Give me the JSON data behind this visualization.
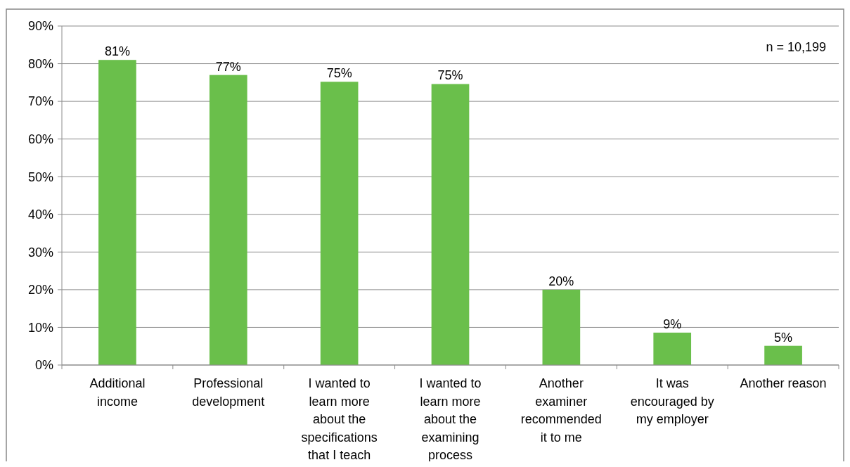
{
  "chart_data": {
    "type": "bar",
    "categories": [
      "Additional income",
      "Professional development",
      "I wanted to learn more about the specifications that I teach",
      "I wanted to learn more about the examining process",
      "Another examiner recommended it to me",
      "It was encouraged by my employer",
      "Another reason"
    ],
    "values": [
      81,
      77,
      75.2,
      74.6,
      20,
      8.6,
      5.1
    ],
    "value_labels": [
      "81%",
      "77%",
      "75%",
      "75%",
      "20%",
      "9%",
      "5%"
    ],
    "color": "#6abf4b",
    "ylim": [
      0,
      90
    ],
    "yticks": [
      {
        "value": 0,
        "label": "0%"
      },
      {
        "value": 10,
        "label": "10%"
      },
      {
        "value": 20,
        "label": "20%"
      },
      {
        "value": 30,
        "label": "30%"
      },
      {
        "value": 40,
        "label": "40%"
      },
      {
        "value": 50,
        "label": "50%"
      },
      {
        "value": 60,
        "label": "60%"
      },
      {
        "value": 70,
        "label": "70%"
      },
      {
        "value": 80,
        "label": "80%"
      },
      {
        "value": 90,
        "label": "90%"
      }
    ],
    "grid": "y",
    "annotations": [
      "n = 10,199"
    ]
  }
}
